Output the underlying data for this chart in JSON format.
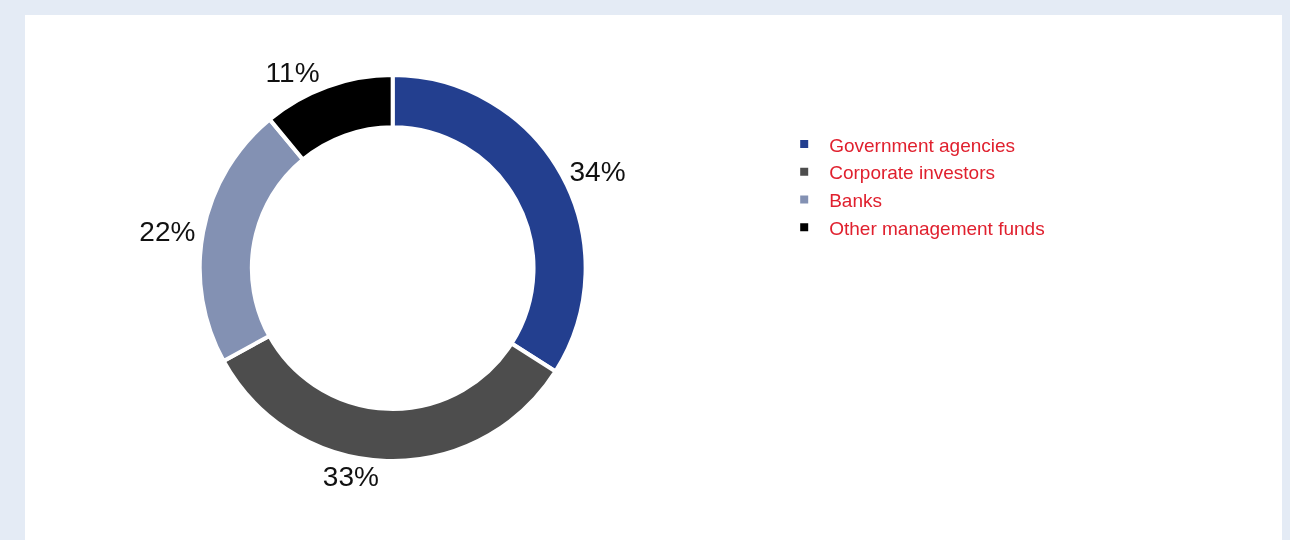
{
  "chart_data": {
    "type": "donut",
    "categories": [
      "Government agencies",
      "Corporate investors",
      "Banks",
      "Other management funds"
    ],
    "values": [
      34,
      33,
      22,
      11
    ],
    "value_labels": [
      "34%",
      "33%",
      "22%",
      "11%"
    ],
    "colors": [
      "#233f8f",
      "#4d4d4d",
      "#8391b3",
      "#000000"
    ],
    "legend": "top right"
  }
}
